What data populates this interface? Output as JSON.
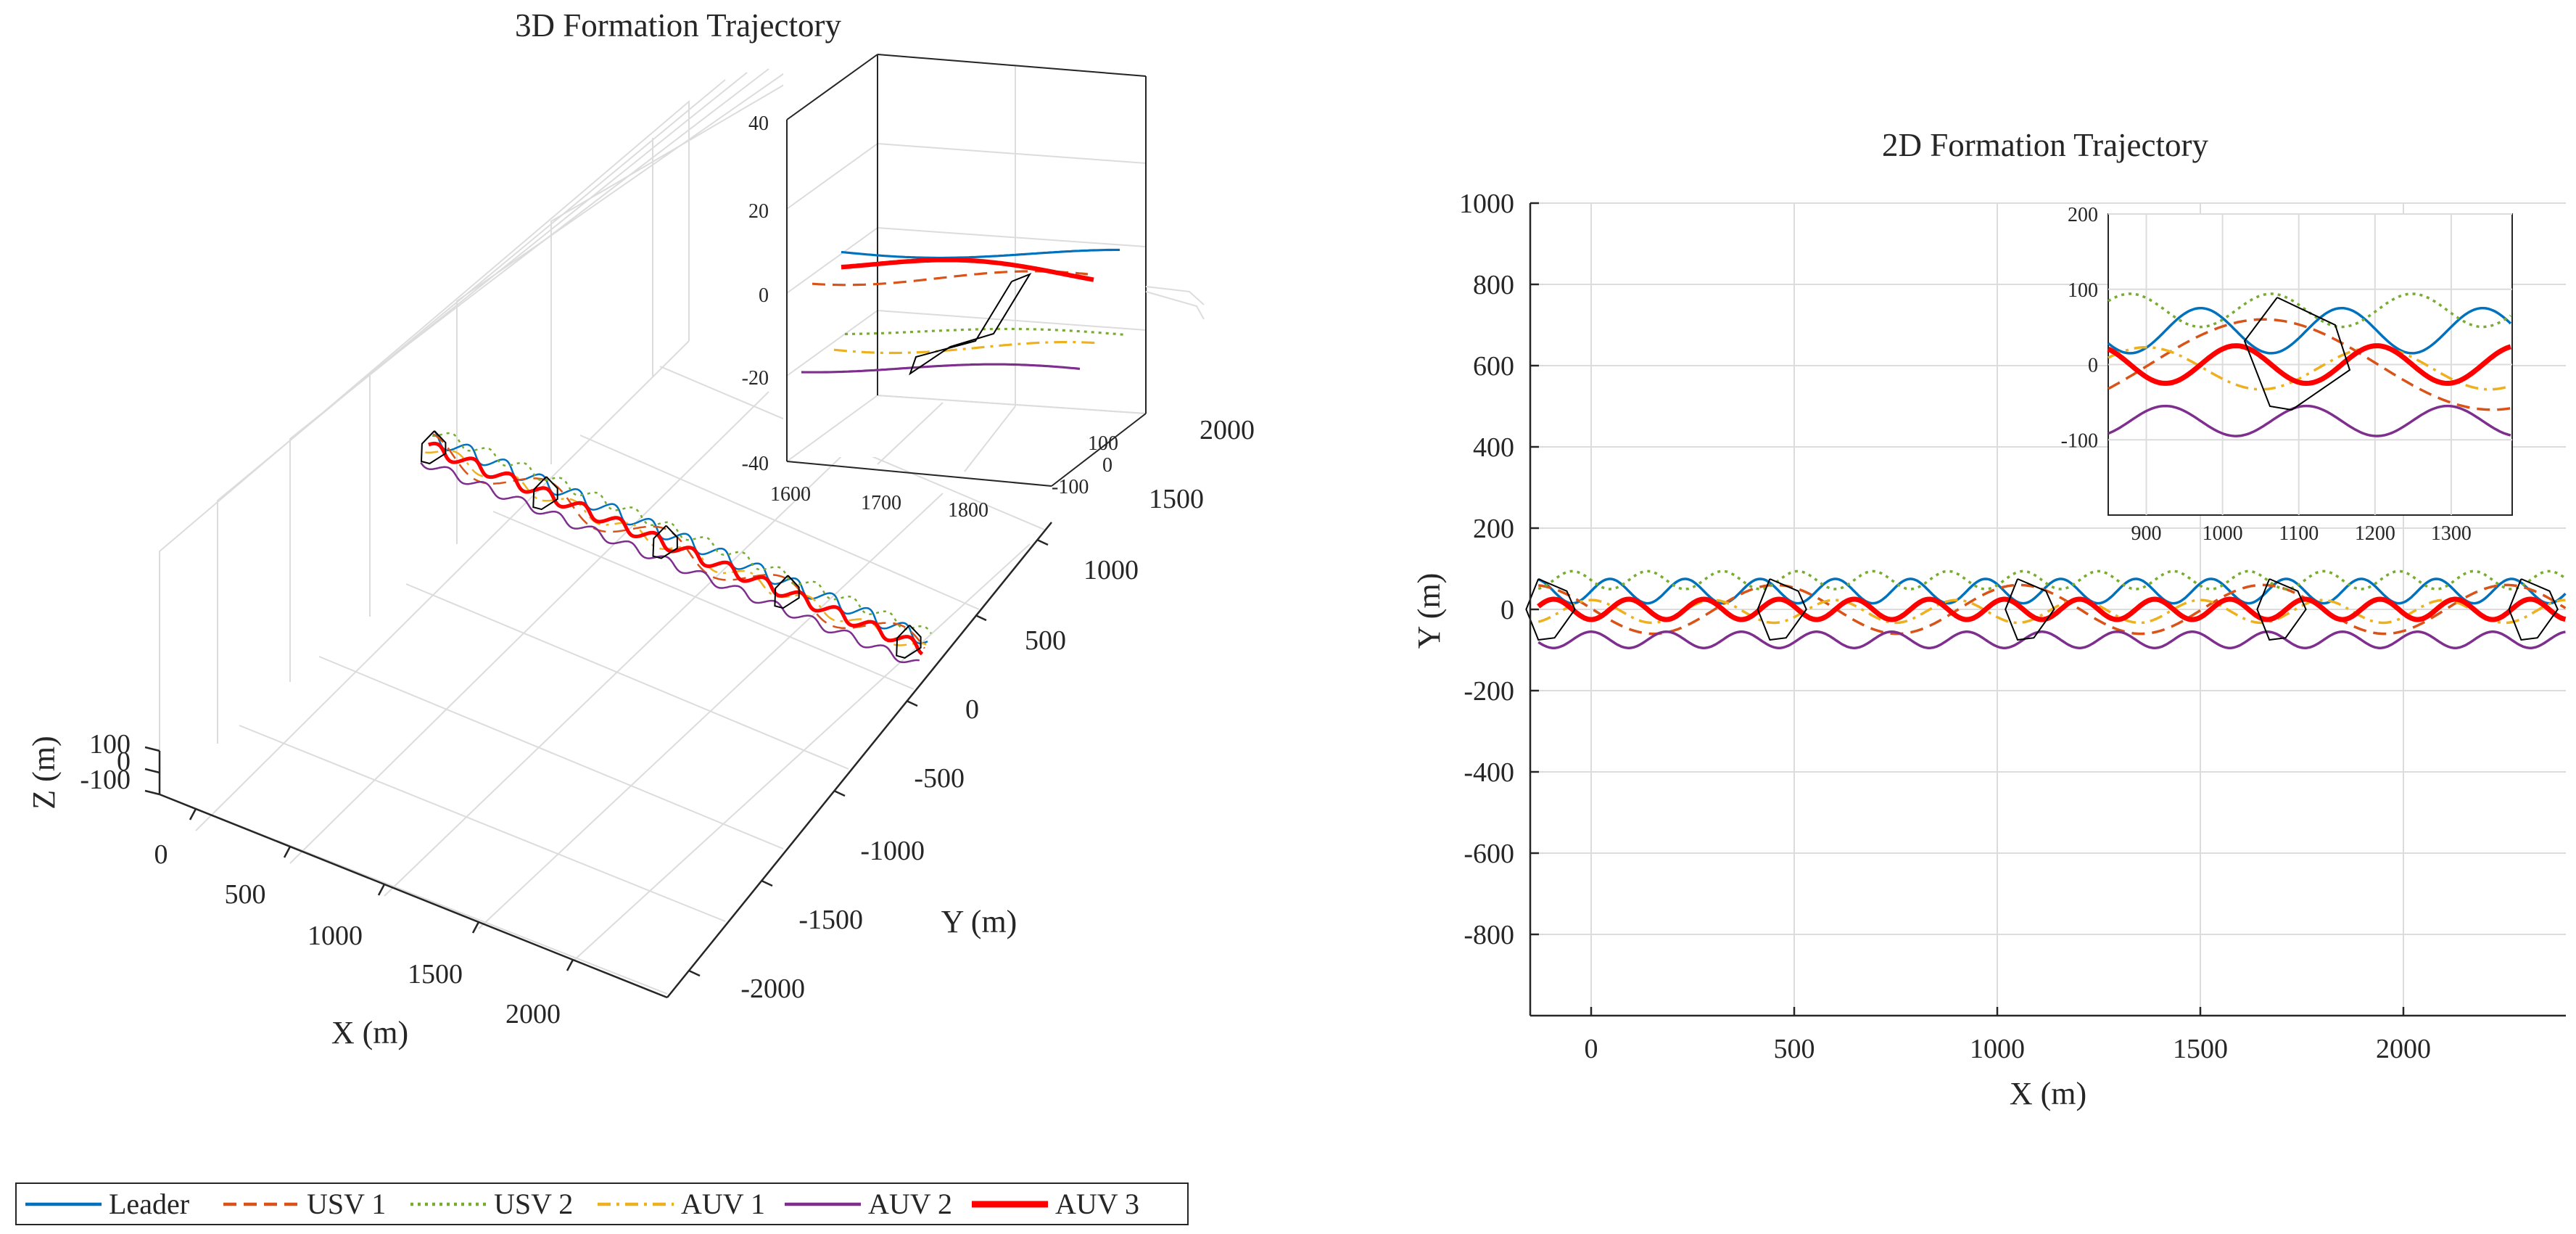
{
  "chart_data": [
    {
      "id": "traj3d",
      "type": "line",
      "projection": "3d",
      "title": "3D Formation Trajectory",
      "xlabel": "X (m)",
      "ylabel": "Y (m)",
      "zlabel": "Z (m)",
      "xlim": [
        -100,
        2400
      ],
      "ylim": [
        -2200,
        2200
      ],
      "zlim": [
        -100,
        100
      ],
      "xticks": [
        "0",
        "500",
        "1000",
        "1500",
        "2000"
      ],
      "yticks": [
        "-2000",
        "-1500",
        "-1000",
        "-500",
        "0",
        "500",
        "1000",
        "1500",
        "2000"
      ],
      "zticks": [
        "100",
        "0",
        "-100"
      ],
      "inset": {
        "xlim": [
          1600,
          1850
        ],
        "ylim": [
          -130,
          130
        ],
        "zlim": [
          -40,
          40
        ],
        "xticks": [
          "1600",
          "1700",
          "1800"
        ],
        "yticks": [
          "100",
          "0",
          "-100"
        ],
        "zticks": [
          "40",
          "20",
          "0",
          "-20",
          "-40"
        ]
      }
    },
    {
      "id": "traj2d",
      "type": "line",
      "title": "2D Formation Trajectory",
      "xlabel": "X (m)",
      "ylabel": "Y (m)",
      "xlim": [
        -150,
        2400
      ],
      "ylim": [
        -1000,
        1000
      ],
      "xticks": [
        0,
        500,
        1000,
        1500,
        2000
      ],
      "yticks": [
        1000,
        800,
        600,
        400,
        200,
        0,
        -200,
        -400,
        -600,
        -800
      ],
      "grid": true,
      "legend": "bottom-left",
      "series": [
        {
          "name": "Leader",
          "color": "#0072BD",
          "dash": "solid",
          "offset": 45,
          "amplitude": 30,
          "period": 185,
          "phase": 0
        },
        {
          "name": "USV 1",
          "color": "#D95319",
          "dash": "dashed",
          "offset": 0,
          "amplitude": 60,
          "period": 600,
          "phase": 3.1
        },
        {
          "name": "USV 2",
          "color": "#77AC30",
          "dash": "dotted",
          "offset": 72,
          "amplitude": 22,
          "period": 185,
          "phase": 3.14
        },
        {
          "name": "AUV 1",
          "color": "#EDB120",
          "dash": "dashdot",
          "offset": -5,
          "amplitude": 28,
          "period": 300,
          "phase": 1.57
        },
        {
          "name": "AUV 2",
          "color": "#7E2F8E",
          "dash": "solid",
          "offset": -75,
          "amplitude": 20,
          "period": 185,
          "phase": 1.57
        },
        {
          "name": "AUV 3",
          "color": "#FF0000",
          "dash": "solid",
          "offset": 0,
          "amplitude": 25,
          "period": 185,
          "phase": 4.71
        }
      ],
      "formation_snapshots_x": [
        -120,
        450,
        1060,
        1680,
        2300
      ],
      "inset": {
        "xlim": [
          850,
          1380
        ],
        "ylim": [
          -200,
          200
        ],
        "xticks": [
          900,
          1000,
          1100,
          1200,
          1300
        ],
        "yticks": [
          200,
          100,
          0,
          -100
        ]
      }
    }
  ]
}
